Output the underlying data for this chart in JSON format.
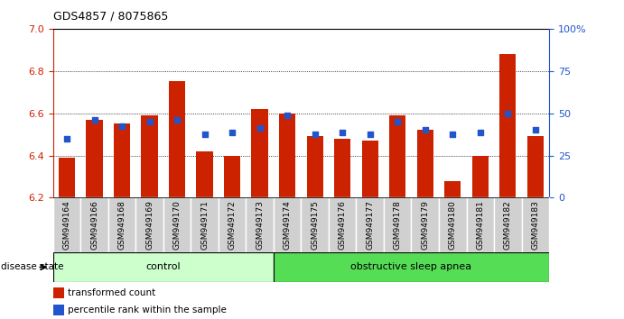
{
  "title": "GDS4857 / 8075865",
  "samples": [
    "GSM949164",
    "GSM949166",
    "GSM949168",
    "GSM949169",
    "GSM949170",
    "GSM949171",
    "GSM949172",
    "GSM949173",
    "GSM949174",
    "GSM949175",
    "GSM949176",
    "GSM949177",
    "GSM949178",
    "GSM949179",
    "GSM949180",
    "GSM949181",
    "GSM949182",
    "GSM949183"
  ],
  "red_values": [
    6.39,
    6.57,
    6.55,
    6.59,
    6.75,
    6.42,
    6.4,
    6.62,
    6.6,
    6.49,
    6.48,
    6.47,
    6.59,
    6.52,
    6.28,
    6.4,
    6.88,
    6.49
  ],
  "blue_values": [
    6.48,
    6.57,
    6.54,
    6.56,
    6.57,
    6.5,
    6.51,
    6.53,
    6.59,
    6.5,
    6.51,
    6.5,
    6.56,
    6.52,
    6.5,
    6.51,
    6.6,
    6.52
  ],
  "ylim_left": [
    6.2,
    7.0
  ],
  "ylim_right": [
    0,
    100
  ],
  "yticks_left": [
    6.2,
    6.4,
    6.6,
    6.8,
    7.0
  ],
  "yticks_right": [
    0,
    25,
    50,
    75,
    100
  ],
  "bar_bottom": 6.2,
  "bar_color": "#cc2200",
  "blue_color": "#2255cc",
  "control_n": 8,
  "apnea_n": 10,
  "control_color": "#ccffcc",
  "apnea_color": "#55dd55",
  "control_label": "control",
  "apnea_label": "obstructive sleep apnea",
  "disease_label": "disease state",
  "legend_red": "transformed count",
  "legend_blue": "percentile rank within the sample",
  "right_axis_color": "#2255cc",
  "left_axis_color": "#cc2200",
  "xtick_bg_color": "#d0d0d0",
  "xtick_border_color": "#ffffff"
}
